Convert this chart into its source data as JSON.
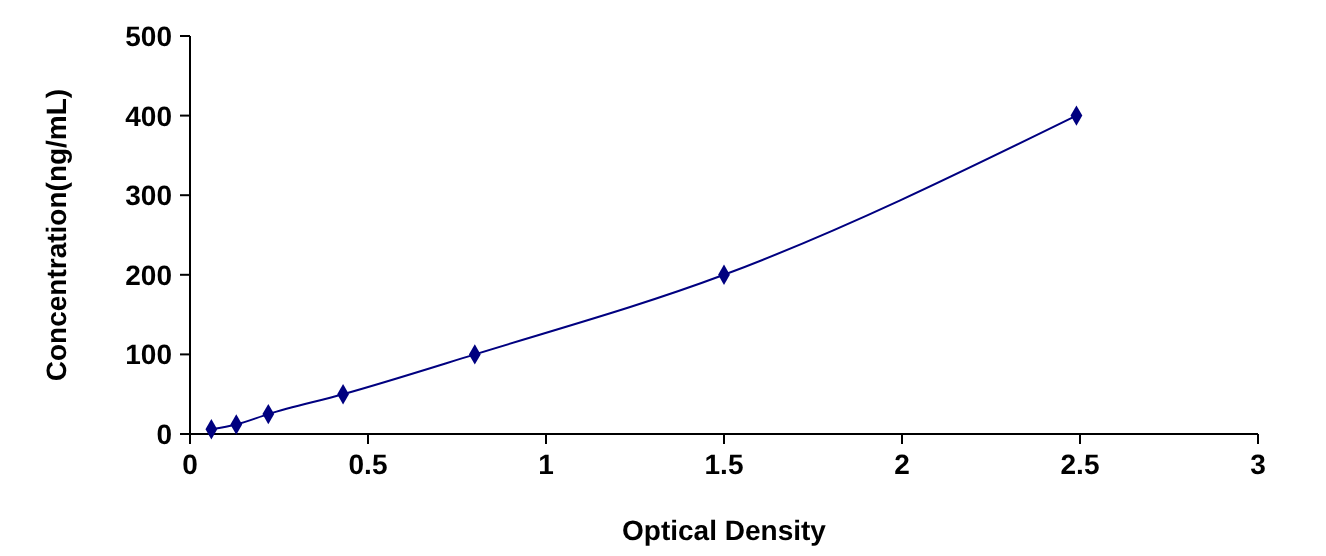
{
  "chart_data": {
    "type": "line",
    "xlabel": "Optical Density",
    "ylabel": "Concentration(ng/mL)",
    "series": [
      {
        "color": "#000080",
        "x": [
          0.06,
          0.13,
          0.22,
          0.43,
          0.8,
          1.5,
          2.49
        ],
        "values": [
          6,
          12,
          25,
          50,
          100,
          200,
          400
        ]
      }
    ],
    "xlim": [
      0,
      3
    ],
    "xticks": [
      0,
      0.5,
      1,
      1.5,
      2,
      2.5,
      3
    ],
    "ylim": [
      0,
      500
    ],
    "yticks": [
      0,
      100,
      200,
      300,
      400,
      500
    ],
    "grid": false,
    "marker": "diamond",
    "line_style": "solid"
  }
}
